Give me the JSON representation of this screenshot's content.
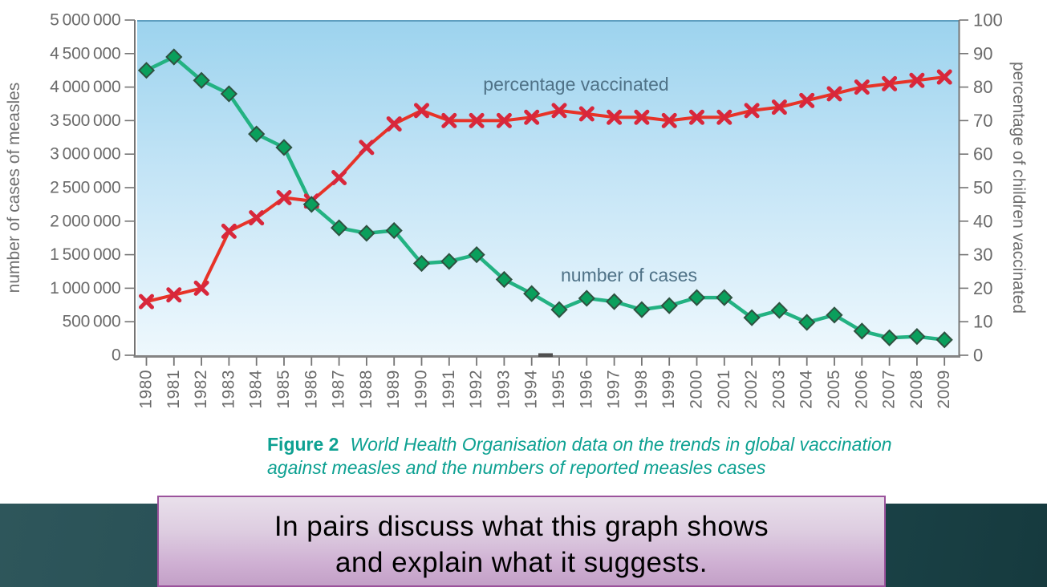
{
  "chart_data": {
    "type": "line",
    "x": [
      1980,
      1981,
      1982,
      1983,
      1984,
      1985,
      1986,
      1987,
      1988,
      1989,
      1990,
      1991,
      1992,
      1993,
      1994,
      1995,
      1996,
      1997,
      1998,
      1999,
      2000,
      2001,
      2002,
      2003,
      2004,
      2005,
      2006,
      2007,
      2008,
      2009
    ],
    "series": [
      {
        "name": "number of cases",
        "axis": "left",
        "marker": "diamond",
        "line_color": "#23b282",
        "marker_fill": "#0a9f5c",
        "marker_stroke": "#2e5140",
        "values": [
          4250000,
          4450000,
          4100000,
          3900000,
          3300000,
          3100000,
          2250000,
          1900000,
          1820000,
          1860000,
          1370000,
          1400000,
          1500000,
          1130000,
          920000,
          680000,
          850000,
          800000,
          680000,
          740000,
          860000,
          860000,
          560000,
          670000,
          490000,
          600000,
          360000,
          260000,
          280000,
          230000
        ]
      },
      {
        "name": "percentage vaccinated",
        "axis": "right",
        "marker": "x-cross",
        "line_color": "#e73328",
        "marker_color": "#d8273b",
        "values": [
          16,
          18,
          20,
          37,
          41,
          47,
          46,
          53,
          62,
          69,
          73,
          70,
          70,
          70,
          71,
          73,
          72,
          71,
          71,
          70,
          71,
          71,
          73,
          74,
          76,
          78,
          80,
          81,
          82,
          83
        ]
      }
    ],
    "left_axis": {
      "label": "number of cases of measles",
      "min": 0,
      "max": 5000000,
      "tick_step": 500000,
      "tick_labels": [
        "0",
        "500 000",
        "1 000 000",
        "1 500 000",
        "2 000 000",
        "2 500 000",
        "3 000 000",
        "3 500 000",
        "4 000 000",
        "4 500 000",
        "5 000 000"
      ]
    },
    "right_axis": {
      "label": "percentage of children vaccinated",
      "min": 0,
      "max": 100,
      "tick_step": 10,
      "tick_labels": [
        "0",
        "10",
        "20",
        "30",
        "40",
        "50",
        "60",
        "70",
        "80",
        "90",
        "100"
      ]
    },
    "x_axis": {
      "tick_labels": [
        "1980",
        "1981",
        "1982",
        "1983",
        "1984",
        "1985",
        "1986",
        "1987",
        "1988",
        "1989",
        "1990",
        "1991",
        "1992",
        "1993",
        "1994",
        "1995",
        "1996",
        "1997",
        "1998",
        "1999",
        "2000",
        "2001",
        "2002",
        "2003",
        "2004",
        "2005",
        "2006",
        "2007",
        "2008",
        "2009"
      ]
    },
    "annotations": [
      {
        "text": "percentage vaccinated",
        "x": 718,
        "y": 113
      },
      {
        "text": "number of cases",
        "x": 784,
        "y": 351
      }
    ],
    "grid": false,
    "legend": "in-plot labels",
    "plot_bg_top": "#9cd3ee",
    "plot_bg_mid": "#c3e4f6",
    "plot_bg_bottom": "#eef8fd",
    "axis_color": "#757575"
  },
  "caption": {
    "figure_label": "Figure 2",
    "line1": "World Health Organisation data on the trends in global vaccination",
    "line2": "against measles and the numbers of reported measles cases",
    "color": "#0ea192"
  },
  "banner": {
    "line1": "In pairs discuss what this graph shows",
    "line2": "and explain what it suggests.",
    "strip_color": "#1f464b",
    "box_border": "#9b539c",
    "box_top": "#e9e0eb",
    "box_bottom": "#c3a0c7"
  }
}
